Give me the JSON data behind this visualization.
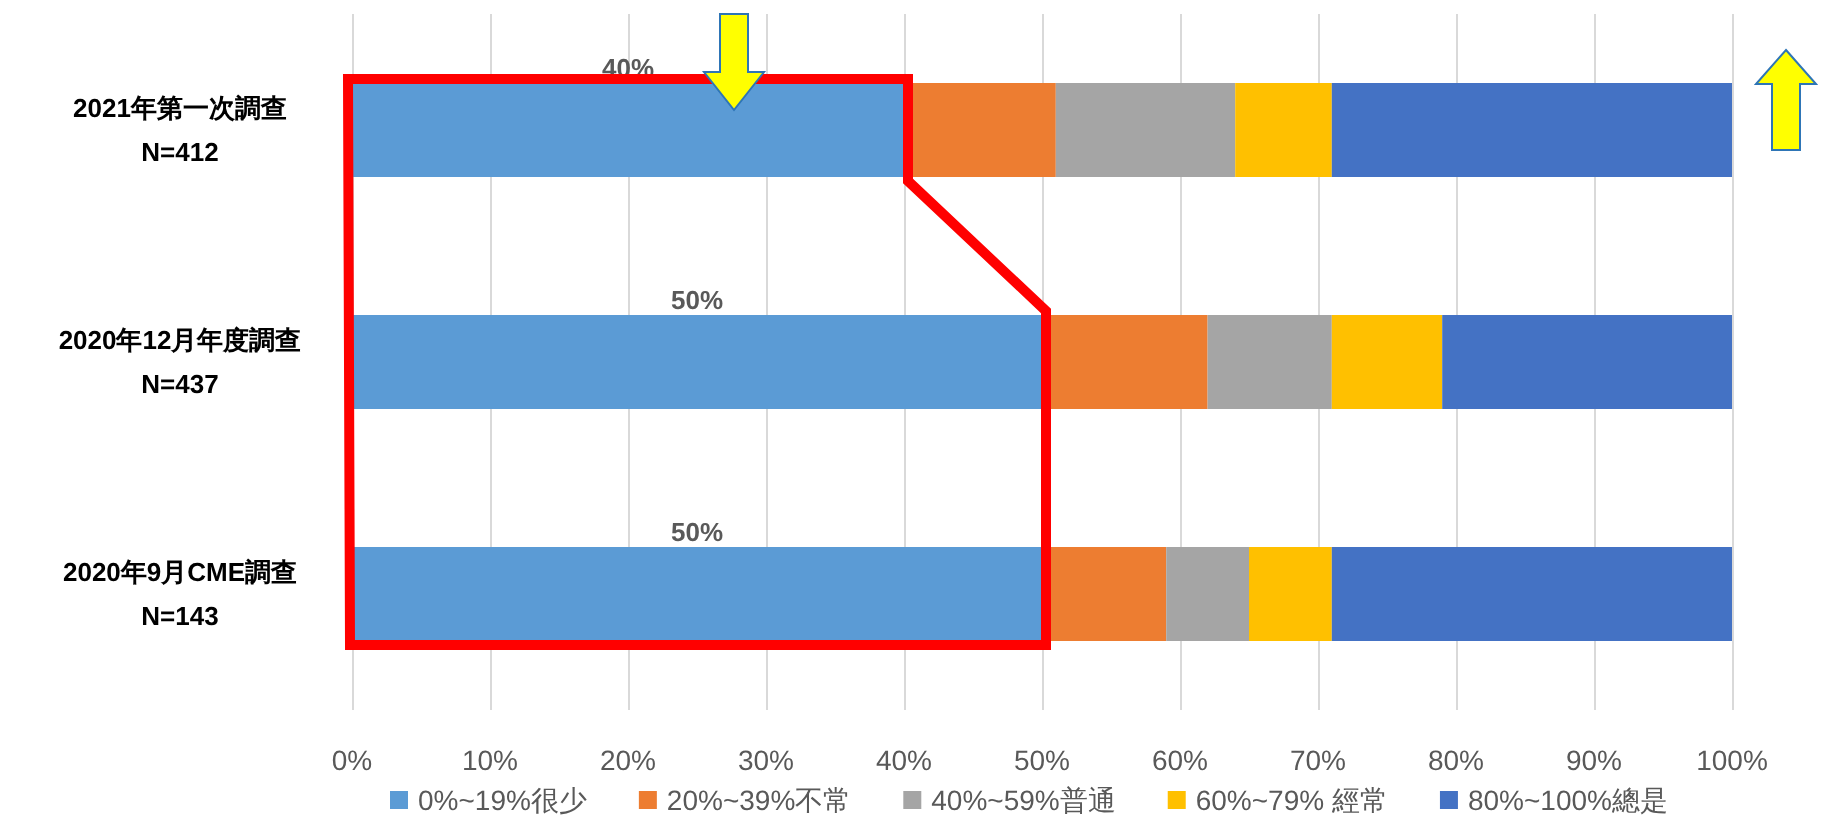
{
  "chart_data": {
    "type": "bar",
    "orientation": "horizontal",
    "stacked": true,
    "categories": [
      "2021年第一次調查\nN=412",
      "2020年12月年度調查\nN=437",
      "2020年9月CME調查\nN=143"
    ],
    "series": [
      {
        "name": "0%~19%很少",
        "color": "#5b9bd5",
        "values": [
          40,
          50,
          50
        ],
        "value_labels": [
          "40%",
          "50%",
          "50%"
        ]
      },
      {
        "name": "20%~39%不常",
        "color": "#ed7d31",
        "values": [
          11,
          12,
          9
        ]
      },
      {
        "name": "40%~59%普通",
        "color": "#a5a5a5",
        "values": [
          13,
          9,
          6
        ]
      },
      {
        "name": "60%~79% 經常",
        "color": "#ffc000",
        "values": [
          7,
          8,
          6
        ]
      },
      {
        "name": "80%~100%總是",
        "color": "#4472c4",
        "values": [
          29,
          21,
          29
        ]
      }
    ],
    "xlim": [
      0,
      100
    ],
    "xticks": [
      {
        "value": 0,
        "label": "0%"
      },
      {
        "value": 10,
        "label": "10%"
      },
      {
        "value": 20,
        "label": "20%"
      },
      {
        "value": 30,
        "label": "30%"
      },
      {
        "value": 40,
        "label": "40%"
      },
      {
        "value": 50,
        "label": "50%"
      },
      {
        "value": 60,
        "label": "60%"
      },
      {
        "value": 70,
        "label": "70%"
      },
      {
        "value": 80,
        "label": "80%"
      },
      {
        "value": 90,
        "label": "90%"
      },
      {
        "value": 100,
        "label": "100%"
      }
    ],
    "grid": "x",
    "legend": "bottom"
  }
}
